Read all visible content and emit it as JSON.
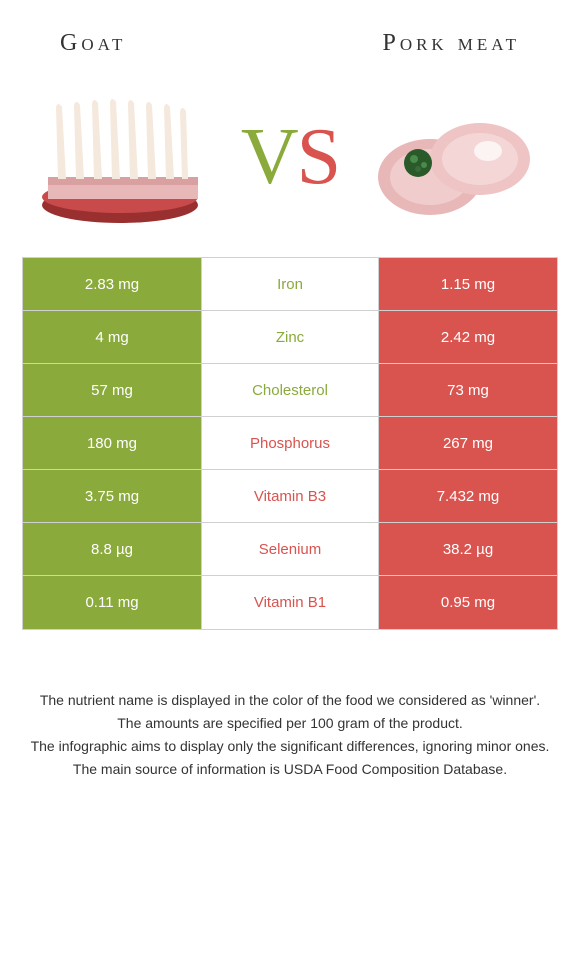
{
  "header": {
    "left_title": "Goat",
    "right_title": "Pork meat"
  },
  "vs": {
    "v": "V",
    "s": "S"
  },
  "colors": {
    "left_bg": "#8aaa3b",
    "right_bg": "#d9534f",
    "left_text": "#8aaa3b",
    "right_text": "#d9534f"
  },
  "rows": [
    {
      "left": "2.83 mg",
      "mid": "Iron",
      "right": "1.15 mg",
      "winner": "left"
    },
    {
      "left": "4 mg",
      "mid": "Zinc",
      "right": "2.42 mg",
      "winner": "left"
    },
    {
      "left": "57 mg",
      "mid": "Cholesterol",
      "right": "73 mg",
      "winner": "left"
    },
    {
      "left": "180 mg",
      "mid": "Phosphorus",
      "right": "267 mg",
      "winner": "right"
    },
    {
      "left": "3.75 mg",
      "mid": "Vitamin B3",
      "right": "7.432 mg",
      "winner": "right"
    },
    {
      "left": "8.8 µg",
      "mid": "Selenium",
      "right": "38.2 µg",
      "winner": "right"
    },
    {
      "left": "0.11 mg",
      "mid": "Vitamin B1",
      "right": "0.95 mg",
      "winner": "right"
    }
  ],
  "footer": {
    "l1": "The nutrient name is displayed in the color of the food we considered as 'winner'.",
    "l2": "The amounts are specified per 100 gram of the product.",
    "l3": "The infographic aims to display only the significant differences, ignoring minor ones.",
    "l4": "The main source of information is USDA Food Composition Database."
  }
}
